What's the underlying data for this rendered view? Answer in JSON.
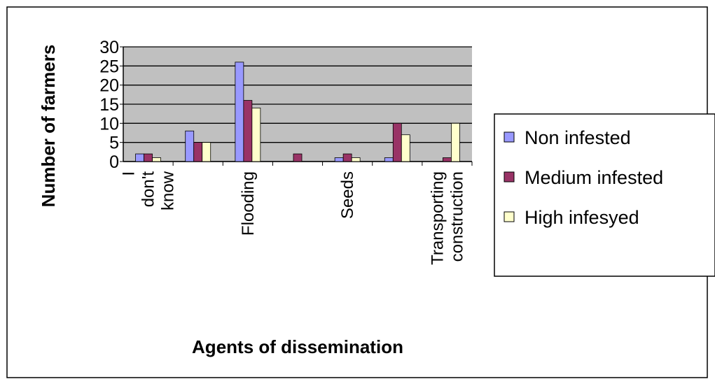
{
  "chart_data": {
    "type": "bar",
    "xlabel": "Agents of dissemination",
    "ylabel": "Number of farmers",
    "categories": [
      "I don't know",
      null,
      "Flooding",
      null,
      "Seeds",
      null,
      "Transporting construction"
    ],
    "series": [
      {
        "name": "Non infested",
        "color": "#9999ff",
        "values": [
          2,
          8,
          26,
          0,
          1,
          1,
          0
        ]
      },
      {
        "name": "Medium infested",
        "color": "#993366",
        "values": [
          2,
          5,
          16,
          2,
          2,
          10,
          1
        ]
      },
      {
        "name": "High infesyed",
        "color": "#ffffcc",
        "values": [
          1,
          5,
          14,
          0,
          1,
          7,
          10
        ]
      }
    ],
    "ylim": [
      0,
      30
    ],
    "yticks": [
      0,
      5,
      10,
      15,
      20,
      25,
      30
    ],
    "grid": true,
    "legend": "right"
  }
}
